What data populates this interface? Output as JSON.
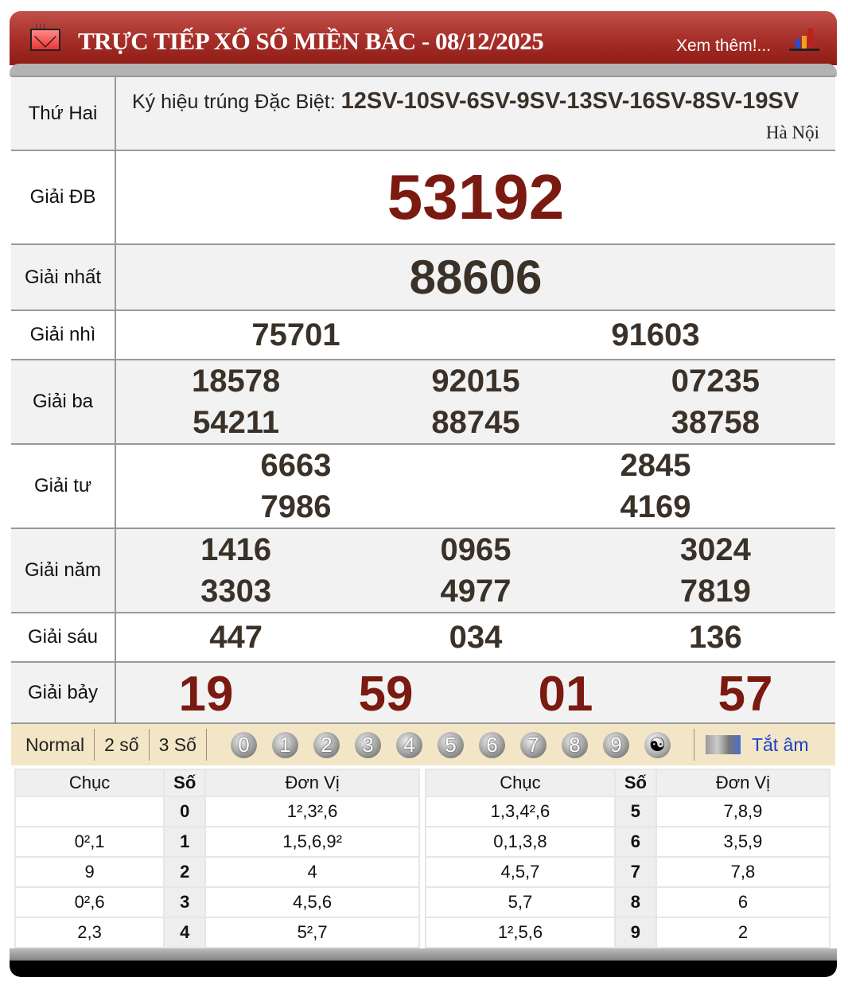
{
  "header": {
    "title": "TRỰC TIẾP XỔ SỐ MIỀN BẮC - 08/12/2025",
    "more_link": "Xem thêm!...",
    "icons": [
      "mail-icon",
      "bar-chart-icon"
    ],
    "color": "#a8302a"
  },
  "info": {
    "day": "Thứ Hai",
    "symbol_label": "Ký hiệu trúng Đặc Biệt: ",
    "symbols": "12SV-10SV-6SV-9SV-13SV-16SV-8SV-19SV",
    "region": "Hà Nội"
  },
  "prizes": [
    {
      "label": "Giải ĐB",
      "numbers": [
        "53192"
      ]
    },
    {
      "label": "Giải nhất",
      "numbers": [
        "88606"
      ]
    },
    {
      "label": "Giải nhì",
      "numbers": [
        "75701",
        "91603"
      ]
    },
    {
      "label": "Giải ba",
      "numbers": [
        "18578",
        "92015",
        "07235",
        "54211",
        "88745",
        "38758"
      ]
    },
    {
      "label": "Giải tư",
      "numbers": [
        "6663",
        "2845",
        "7986",
        "4169"
      ]
    },
    {
      "label": "Giải năm",
      "numbers": [
        "1416",
        "0965",
        "3024",
        "3303",
        "4977",
        "7819"
      ]
    },
    {
      "label": "Giải sáu",
      "numbers": [
        "447",
        "034",
        "136"
      ]
    },
    {
      "label": "Giải bảy",
      "numbers": [
        "19",
        "59",
        "01",
        "57"
      ]
    }
  ],
  "toolbar": {
    "modes": [
      "Normal",
      "2 số",
      "3 Số"
    ],
    "digits": [
      "0",
      "1",
      "2",
      "3",
      "4",
      "5",
      "6",
      "7",
      "8",
      "9"
    ],
    "sound_label": "Tắt âm"
  },
  "loto": {
    "headers": [
      "Chục",
      "Số",
      "Đơn Vị"
    ],
    "left": [
      [
        "",
        "0",
        "1²,3²,6"
      ],
      [
        "0²,1",
        "1",
        "1,5,6,9²"
      ],
      [
        "9",
        "2",
        "4"
      ],
      [
        "0²,6",
        "3",
        "4,5,6"
      ],
      [
        "2,3",
        "4",
        "5²,7"
      ]
    ],
    "right": [
      [
        "1,3,4²,6",
        "5",
        "7,8,9"
      ],
      [
        "0,1,3,8",
        "6",
        "3,5,9"
      ],
      [
        "4,5,7",
        "7",
        "7,8"
      ],
      [
        "5,7",
        "8",
        "6"
      ],
      [
        "1²,5,6",
        "9",
        "2"
      ]
    ]
  },
  "colors": {
    "special": "#7b1a10",
    "number": "#3a3128",
    "link": "#1a3fc9"
  }
}
